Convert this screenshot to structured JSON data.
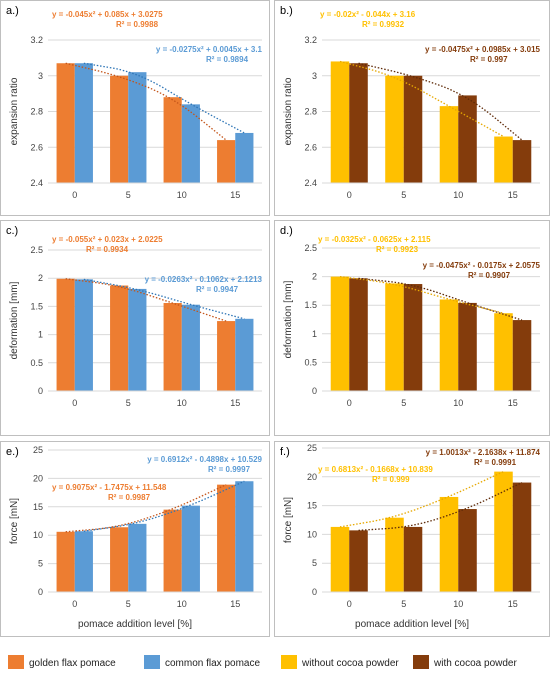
{
  "colors": {
    "golden": "#ED7D31",
    "common": "#5B9BD5",
    "without": "#FFC000",
    "with": "#843C0C",
    "grid": "#D9D9D9",
    "frame": "#BFBFBF"
  },
  "shared": {
    "xlabel": "pomace addition level [%]",
    "legend": [
      {
        "label": "golden flax pomace",
        "color": "#ED7D31"
      },
      {
        "label": "common flax pomace",
        "color": "#5B9BD5"
      },
      {
        "label": "without cocoa powder",
        "color": "#FFC000"
      },
      {
        "label": "with cocoa powder",
        "color": "#843C0C"
      }
    ]
  },
  "chart_data": [
    {
      "panel": "a.)",
      "type": "bar",
      "categories": [
        "0",
        "5",
        "10",
        "15"
      ],
      "ylabel": "expansion ratio",
      "ylim": [
        2.4,
        3.2
      ],
      "yticks": [
        "2.4",
        "2.6",
        "2.8",
        "3",
        "3.2"
      ],
      "grid": true,
      "series": [
        {
          "name": "golden flax pomace",
          "color": "#ED7D31",
          "values": [
            3.07,
            3.0,
            2.88,
            2.64
          ]
        },
        {
          "name": "common flax pomace",
          "color": "#5B9BD5",
          "values": [
            3.07,
            3.02,
            2.84,
            2.68
          ]
        }
      ],
      "annotations": [
        {
          "color": "#ED7D31",
          "eq": "y = -0.045x² + 0.085x + 3.0275",
          "r2": "R² = 0.9988"
        },
        {
          "color": "#5B9BD5",
          "eq": "y = -0.0275x² + 0.0045x + 3.1",
          "r2": "R² = 0.9894"
        }
      ]
    },
    {
      "panel": "b.)",
      "type": "bar",
      "categories": [
        "0",
        "5",
        "10",
        "15"
      ],
      "ylabel": "expansion ratio",
      "ylim": [
        2.4,
        3.2
      ],
      "yticks": [
        "2.4",
        "2.6",
        "2.8",
        "3",
        "3.2"
      ],
      "grid": true,
      "series": [
        {
          "name": "without cocoa powder",
          "color": "#FFC000",
          "values": [
            3.08,
            3.0,
            2.83,
            2.66
          ]
        },
        {
          "name": "with cocoa powder",
          "color": "#843C0C",
          "values": [
            3.07,
            3.0,
            2.89,
            2.64
          ]
        }
      ],
      "annotations": [
        {
          "color": "#FFC000",
          "eq": "y = -0.02x² - 0.044x + 3.16",
          "r2": "R² = 0.9932"
        },
        {
          "color": "#843C0C",
          "eq": "y = -0.0475x² + 0.0985x + 3.015",
          "r2": "R² = 0.997"
        }
      ]
    },
    {
      "panel": "c.)",
      "type": "bar",
      "categories": [
        "0",
        "5",
        "10",
        "15"
      ],
      "ylabel": "deformation [mm]",
      "ylim": [
        0,
        2.5
      ],
      "yticks": [
        "0",
        "0.5",
        "1",
        "1.5",
        "2",
        "2.5"
      ],
      "grid": true,
      "series": [
        {
          "name": "golden flax pomace",
          "color": "#ED7D31",
          "values": [
            1.99,
            1.87,
            1.56,
            1.24
          ]
        },
        {
          "name": "common flax pomace",
          "color": "#5B9BD5",
          "values": [
            1.98,
            1.81,
            1.53,
            1.28
          ]
        }
      ],
      "annotations": [
        {
          "color": "#ED7D31",
          "eq": "y = -0.055x² + 0.023x + 2.0225",
          "r2": "R² = 0.9934"
        },
        {
          "color": "#5B9BD5",
          "eq": "y = -0.0263x² - 0.1062x + 2.1213",
          "r2": "R² = 0.9947"
        }
      ]
    },
    {
      "panel": "d.)",
      "type": "bar",
      "categories": [
        "0",
        "5",
        "10",
        "15"
      ],
      "ylabel": "deformation [mm]",
      "ylim": [
        0,
        2.5
      ],
      "yticks": [
        "0",
        "0.5",
        "1",
        "1.5",
        "2",
        "2.5"
      ],
      "grid": true,
      "series": [
        {
          "name": "without cocoa powder",
          "color": "#FFC000",
          "values": [
            2.0,
            1.88,
            1.6,
            1.36
          ]
        },
        {
          "name": "with cocoa powder",
          "color": "#843C0C",
          "values": [
            1.97,
            1.87,
            1.54,
            1.24
          ]
        }
      ],
      "annotations": [
        {
          "color": "#FFC000",
          "eq": "y = -0.0325x² - 0.0625x + 2.115",
          "r2": "R² = 0.9923"
        },
        {
          "color": "#843C0C",
          "eq": "y = -0.0475x² - 0.0175x + 2.0575",
          "r2": "R² = 0.9907"
        }
      ]
    },
    {
      "panel": "e.)",
      "type": "bar",
      "categories": [
        "0",
        "5",
        "10",
        "15"
      ],
      "ylabel": "force [mN]",
      "ylim": [
        0,
        25
      ],
      "yticks": [
        "0",
        "5",
        "10",
        "15",
        "20",
        "25"
      ],
      "grid": true,
      "series": [
        {
          "name": "golden flax pomace",
          "color": "#ED7D31",
          "values": [
            10.6,
            11.4,
            14.5,
            18.9
          ]
        },
        {
          "name": "common flax pomace",
          "color": "#5B9BD5",
          "values": [
            10.7,
            12.0,
            15.2,
            19.5
          ]
        }
      ],
      "annotations": [
        {
          "color": "#ED7D31",
          "eq": "y = 0.9075x² - 1.7475x + 11.548",
          "r2": "R² = 0.9987"
        },
        {
          "color": "#5B9BD5",
          "eq": "y = 0.6912x² - 0.4898x + 10.529",
          "r2": "R² = 0.9997"
        }
      ]
    },
    {
      "panel": "f.)",
      "type": "bar",
      "categories": [
        "0",
        "5",
        "10",
        "15"
      ],
      "ylabel": "force [mN]",
      "ylim": [
        0,
        25
      ],
      "yticks": [
        "0",
        "5",
        "10",
        "15",
        "20",
        "25"
      ],
      "grid": true,
      "series": [
        {
          "name": "without cocoa powder",
          "color": "#FFC000",
          "values": [
            11.3,
            12.9,
            16.5,
            20.9
          ]
        },
        {
          "name": "with cocoa powder",
          "color": "#843C0C",
          "values": [
            10.7,
            11.3,
            14.4,
            19.0
          ]
        }
      ],
      "annotations": [
        {
          "color": "#FFC000",
          "eq": "y = 0.6813x² - 0.1668x + 10.839",
          "r2": "R² = 0.999"
        },
        {
          "color": "#843C0C",
          "eq": "y = 1.0013x² - 2.1638x + 11.874",
          "r2": "R² = 0.9991"
        }
      ]
    }
  ]
}
